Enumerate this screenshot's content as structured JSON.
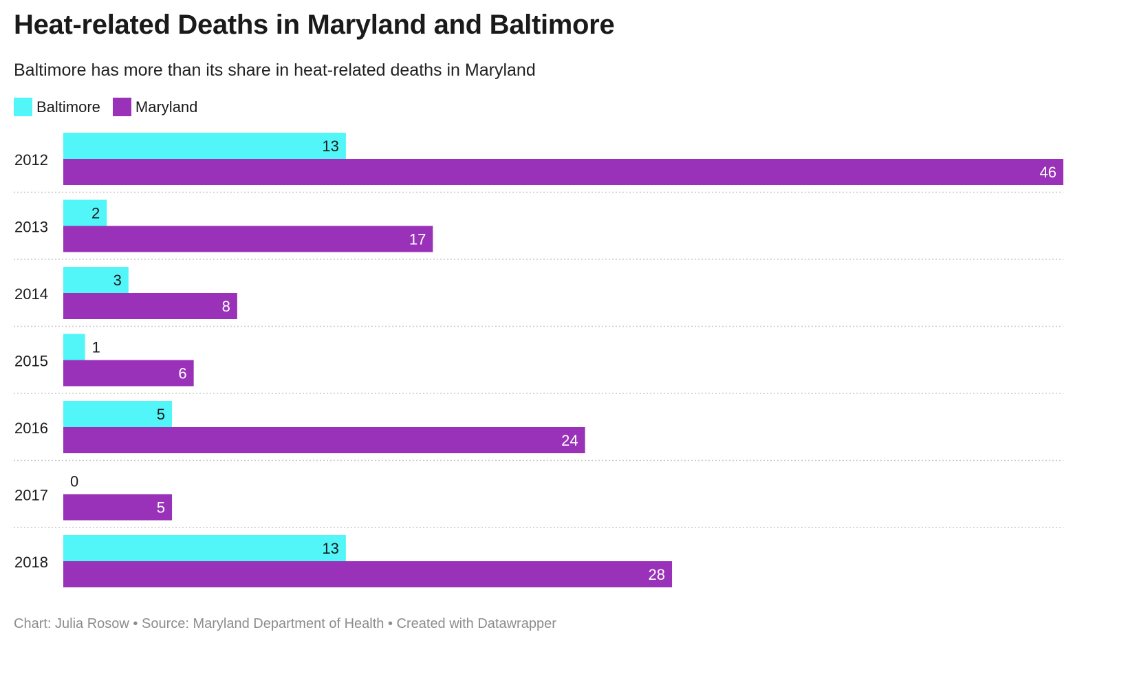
{
  "chart_data": {
    "type": "bar",
    "orientation": "horizontal",
    "title": "Heat-related Deaths in Maryland and Baltimore",
    "subtitle": "Baltimore has more than its share in heat-related deaths in Maryland",
    "categories": [
      "2012",
      "2013",
      "2014",
      "2015",
      "2016",
      "2017",
      "2018"
    ],
    "series": [
      {
        "name": "Baltimore",
        "color": "#52f6f8",
        "values": [
          13,
          2,
          3,
          1,
          5,
          0,
          13
        ]
      },
      {
        "name": "Maryland",
        "color": "#9932b8",
        "values": [
          46,
          17,
          8,
          6,
          24,
          5,
          28
        ]
      }
    ],
    "xlim": [
      0,
      46
    ],
    "grid": false,
    "legend_position": "top-left",
    "data_labels": true
  },
  "footer": {
    "credit": "Chart: Julia Rosow",
    "separator": "•",
    "source": "Source: Maryland Department of Health",
    "tool": "Created with Datawrapper"
  }
}
